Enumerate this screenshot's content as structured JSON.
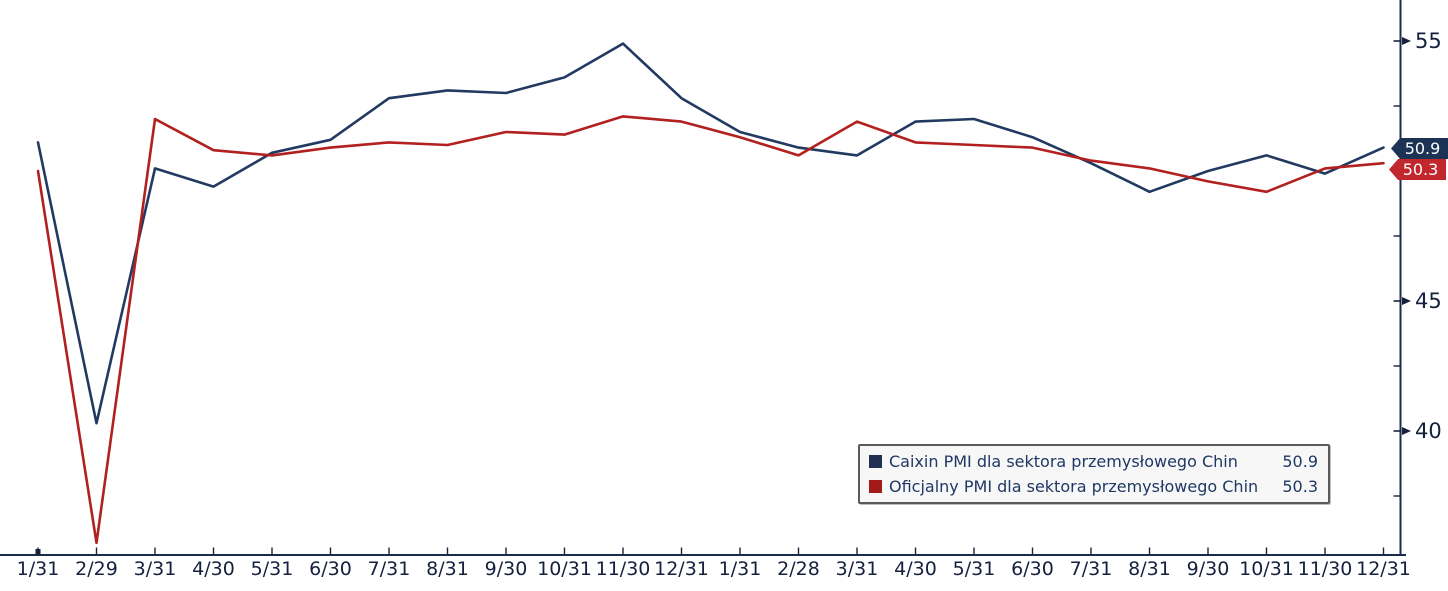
{
  "chart_data": {
    "type": "line",
    "title": "",
    "grid": false,
    "legend_position": "bottom-right",
    "x_tick_labels": [
      "1/31",
      "2/29",
      "3/31",
      "4/30",
      "5/31",
      "6/30",
      "7/31",
      "8/31",
      "9/30",
      "10/31",
      "11/30",
      "12/31",
      "1/31",
      "2/28",
      "3/31",
      "4/30",
      "5/31",
      "6/30",
      "7/31",
      "8/31",
      "9/30",
      "10/31",
      "11/30",
      "12/31"
    ],
    "y_axis": {
      "side": "right",
      "major_ticks": [
        55,
        50,
        45,
        40
      ],
      "minor_ticks": [
        52.5,
        47.5,
        42.5,
        37.5
      ],
      "ylim": [
        35.2,
        56.6
      ]
    },
    "series": [
      {
        "name": "Caixin PMI dla sektora przemysłowego Chin",
        "color": "#223a61",
        "values": [
          51.1,
          40.3,
          50.1,
          49.4,
          50.7,
          51.2,
          52.8,
          53.1,
          53.0,
          53.6,
          54.9,
          52.8,
          51.5,
          50.9,
          50.6,
          51.9,
          52.0,
          51.3,
          50.3,
          49.2,
          50.0,
          50.6,
          49.9,
          50.9
        ],
        "last_value": 50.9
      },
      {
        "name": "Oficjalny PMI dla sektora przemysłowego Chin",
        "color": "#b22020",
        "values": [
          50.0,
          35.7,
          52.0,
          50.8,
          50.6,
          50.9,
          51.1,
          51.0,
          51.5,
          51.4,
          52.1,
          51.9,
          51.3,
          50.6,
          51.9,
          51.1,
          51.0,
          50.9,
          50.4,
          50.1,
          49.6,
          49.2,
          50.1,
          50.3
        ],
        "last_value": 50.3
      }
    ]
  },
  "tags": {
    "caixin": "50.9",
    "official": "50.3"
  },
  "legend": {
    "entries": [
      {
        "label": "Caixin PMI dla sektora przemysłowego Chin",
        "value": "50.9",
        "swatch_color": "#202f52"
      },
      {
        "label": "Oficjalny PMI dla sektora przemysłowego Chin",
        "value": "50.3",
        "swatch_color": "#a21a1a"
      }
    ]
  },
  "colors": {
    "axis": "#1c2b4a",
    "tick": "#16213c",
    "caixin_line": "#223a61",
    "official_line": "#b22020",
    "caixin_tag_bg": "#1d3356",
    "official_tag_bg": "#c1272d",
    "legend_text": "#1f3864"
  }
}
